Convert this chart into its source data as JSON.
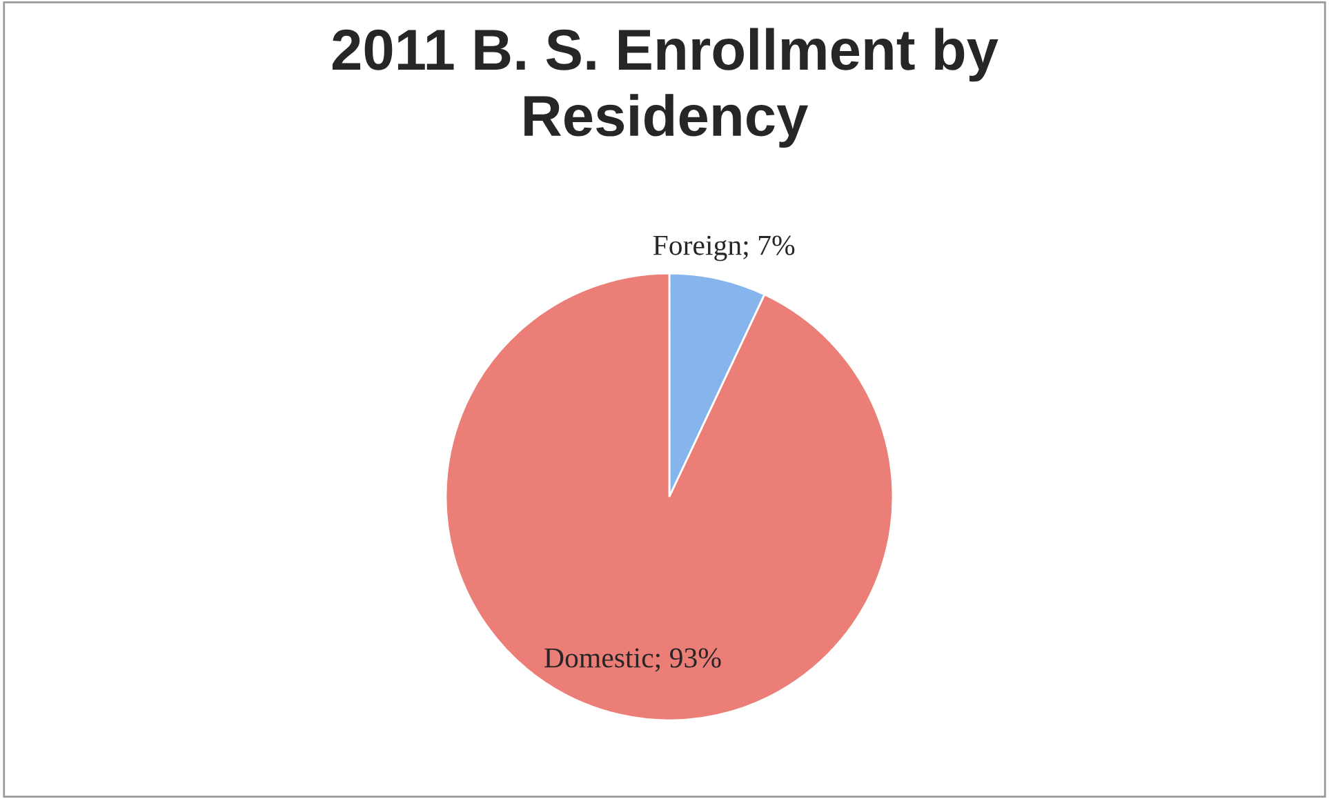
{
  "chart_data": {
    "type": "pie",
    "title": "2011 B. S. Enrollment by Residency",
    "categories": [
      "Foreign",
      "Domestic"
    ],
    "values": [
      7,
      93
    ],
    "colors": [
      "#86b4ec",
      "#eb7f78"
    ],
    "value_labels": [
      "7%",
      "93%"
    ],
    "legend": false
  }
}
